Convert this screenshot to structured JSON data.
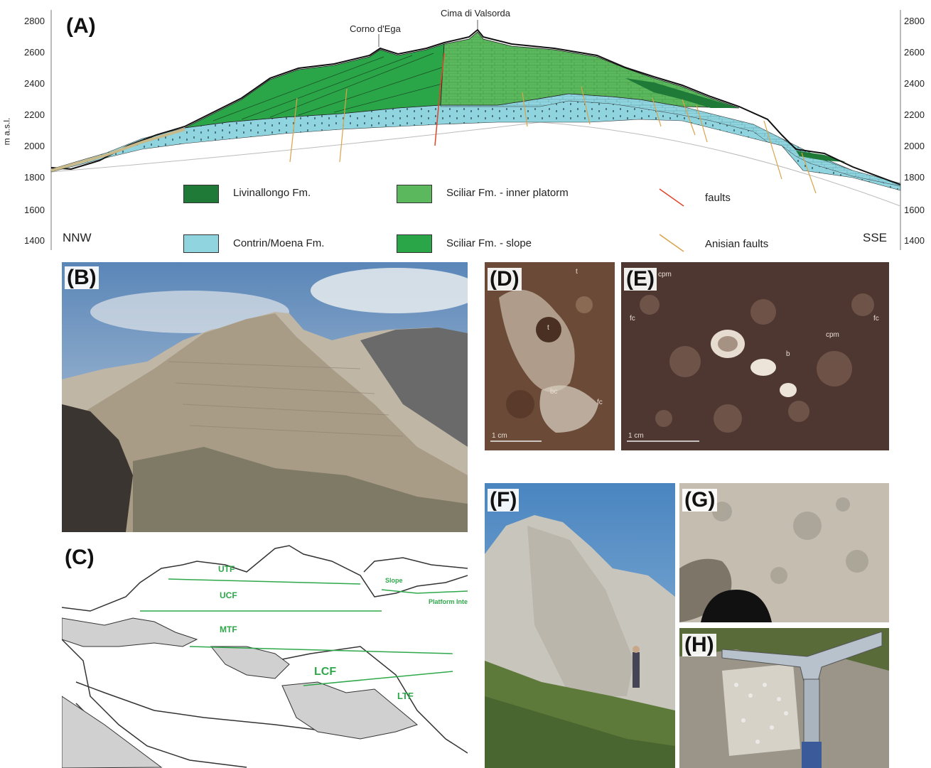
{
  "panels": {
    "a": "(A)",
    "b": "(B)",
    "c": "(C)",
    "d": "(D)",
    "e": "(E)",
    "f": "(F)",
    "g": "(G)",
    "h": "(H)"
  },
  "cross_section": {
    "y_axis_label": "m a.s.l.",
    "ticks": [
      "2800",
      "2600",
      "2400",
      "2200",
      "2000",
      "1800",
      "1600",
      "1400"
    ],
    "left_direction": "NNW",
    "right_direction": "SSE",
    "peaks": [
      "Corno d'Ega",
      "Cima di Valsorda"
    ],
    "legend": [
      {
        "label": "Livinallongo Fm.",
        "color": "#1f7a37"
      },
      {
        "label": "Contrin/Moena Fm.",
        "color": "#8fd4df"
      },
      {
        "label": "Sciliar Fm. - inner platorm",
        "color": "#5cb85c"
      },
      {
        "label": "Sciliar Fm. - slope",
        "color": "#2aa648"
      },
      {
        "label": "faults",
        "color": "#e0452b"
      },
      {
        "label": "Anisian faults",
        "color": "#d9a34a"
      }
    ]
  },
  "sketch": {
    "labels": [
      "UTF",
      "UCF",
      "MTF",
      "LCF",
      "LTF",
      "Slope",
      "Platform Interior"
    ]
  },
  "thin_sections": {
    "d_labels": [
      "t",
      "t",
      "bc",
      "fc"
    ],
    "d_scale": "1 cm",
    "e_labels": [
      "cpm",
      "fc",
      "cpm",
      "b",
      "fc"
    ],
    "e_scale": "1 cm"
  }
}
